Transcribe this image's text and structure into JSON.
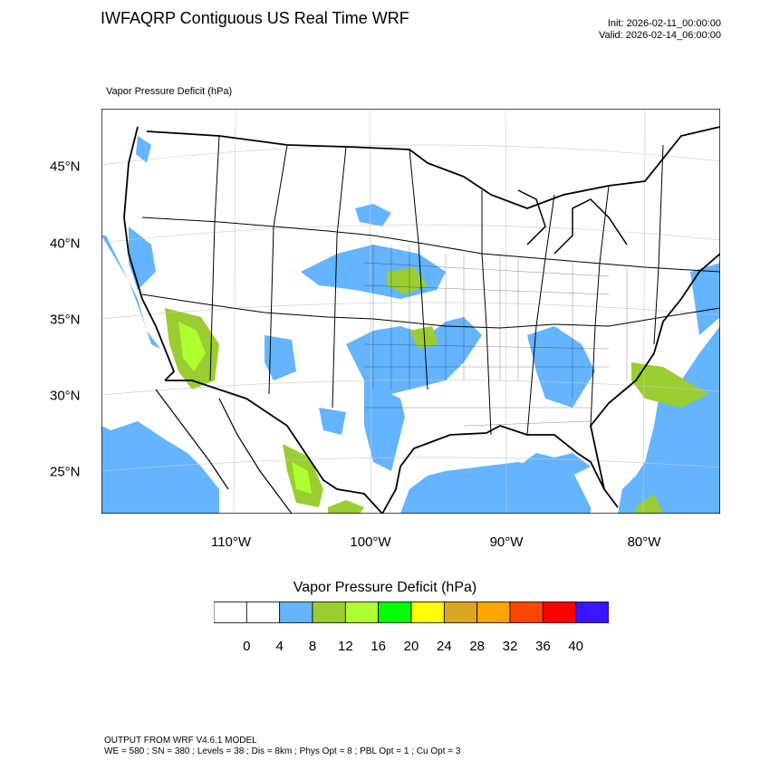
{
  "header": {
    "title": "IWFAQRP Contiguous US Real Time WRF",
    "init": "Init: 2026-02-11_00:00:00",
    "valid": "Valid: 2026-02-14_06:00:00"
  },
  "field_label": "Vapor Pressure Deficit   (hPa)",
  "map": {
    "lon_labels": [
      "110°W",
      "100°W",
      "90°W",
      "80°W"
    ],
    "lat_labels": [
      "45°N",
      "40°N",
      "35°N",
      "30°N",
      "25°N"
    ],
    "colors": {
      "land": "#ffffff",
      "vpd_4_8": "#64b4ff",
      "vpd_8_12": "#9acd32",
      "vpd_12_16": "#adff2f",
      "boundaries": "#000000",
      "graticule": "#c8c8c8"
    }
  },
  "colorbar": {
    "title": "Vapor Pressure Deficit  (hPa)",
    "labels": [
      "0",
      "4",
      "8",
      "12",
      "16",
      "20",
      "24",
      "28",
      "32",
      "36",
      "40"
    ],
    "colors": [
      "#ffffff",
      "#ffffff",
      "#64b4ff",
      "#9acd32",
      "#adff2f",
      "#00ff00",
      "#ffff00",
      "#daa520",
      "#ffa500",
      "#ff4500",
      "#ff0000",
      "#3c14ff"
    ]
  },
  "footer": {
    "line1": "OUTPUT FROM WRF V4.6.1 MODEL",
    "line2": "WE = 580 ; SN = 380 ; Levels = 38 ; Dis = 8km ; Phys Opt = 8 ; PBL Opt = 1 ; Cu Opt = 3"
  }
}
